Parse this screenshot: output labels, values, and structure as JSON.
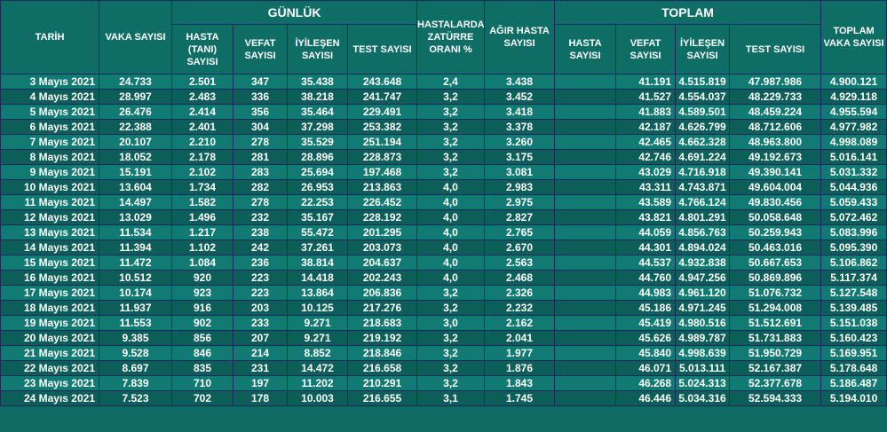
{
  "header": {
    "tarih": "TARİH",
    "vaka": "VAKA SAYISI",
    "gunluk": "GÜNLÜK",
    "hasta_tani": "HASTA (TANI) SAYISI",
    "vefat": "VEFAT SAYISI",
    "iyilesen": "İYİLEŞEN SAYISI",
    "test": "TEST SAYISI",
    "zaturre": "HASTALARDA ZATÜRRE ORANI %",
    "agir": "AĞIR HASTA SAYISI",
    "toplam": "TOPLAM",
    "t_hasta": "HASTA SAYISI",
    "t_vefat": "VEFAT SAYISI",
    "t_iyilesen": "İYİLEŞEN SAYISI",
    "t_test": "TEST SAYISI",
    "t_vaka": "TOPLAM VAKA SAYISI"
  },
  "rows": [
    {
      "tarih": "3 Mayıs 2021",
      "vaka": "24.733",
      "hasta": "2.501",
      "vefat": "347",
      "iyilesen": "35.438",
      "test": "243.648",
      "zaturre": "2,4",
      "agir": "3.438",
      "t_hasta": "",
      "t_vefat": "41.191",
      "t_iyilesen": "4.515.819",
      "t_test": "47.987.986",
      "t_vaka": "4.900.121"
    },
    {
      "tarih": "4 Mayıs 2021",
      "vaka": "28.997",
      "hasta": "2.483",
      "vefat": "336",
      "iyilesen": "38.218",
      "test": "241.747",
      "zaturre": "3,2",
      "agir": "3.452",
      "t_hasta": "",
      "t_vefat": "41.527",
      "t_iyilesen": "4.554.037",
      "t_test": "48.229.733",
      "t_vaka": "4.929.118"
    },
    {
      "tarih": "5 Mayıs 2021",
      "vaka": "26.476",
      "hasta": "2.414",
      "vefat": "356",
      "iyilesen": "35.464",
      "test": "229.491",
      "zaturre": "3,2",
      "agir": "3.418",
      "t_hasta": "",
      "t_vefat": "41.883",
      "t_iyilesen": "4.589.501",
      "t_test": "48.459.224",
      "t_vaka": "4.955.594"
    },
    {
      "tarih": "6 Mayıs 2021",
      "vaka": "22.388",
      "hasta": "2.401",
      "vefat": "304",
      "iyilesen": "37.298",
      "test": "253.382",
      "zaturre": "3,2",
      "agir": "3.378",
      "t_hasta": "",
      "t_vefat": "42.187",
      "t_iyilesen": "4.626.799",
      "t_test": "48.712.606",
      "t_vaka": "4.977.982"
    },
    {
      "tarih": "7 Mayıs 2021",
      "vaka": "20.107",
      "hasta": "2.210",
      "vefat": "278",
      "iyilesen": "35.529",
      "test": "251.194",
      "zaturre": "3,2",
      "agir": "3.260",
      "t_hasta": "",
      "t_vefat": "42.465",
      "t_iyilesen": "4.662.328",
      "t_test": "48.963.800",
      "t_vaka": "4.998.089"
    },
    {
      "tarih": "8 Mayıs 2021",
      "vaka": "18.052",
      "hasta": "2.178",
      "vefat": "281",
      "iyilesen": "28.896",
      "test": "228.873",
      "zaturre": "3,2",
      "agir": "3.175",
      "t_hasta": "",
      "t_vefat": "42.746",
      "t_iyilesen": "4.691.224",
      "t_test": "49.192.673",
      "t_vaka": "5.016.141"
    },
    {
      "tarih": "9 Mayıs 2021",
      "vaka": "15.191",
      "hasta": "2.102",
      "vefat": "283",
      "iyilesen": "25.694",
      "test": "197.468",
      "zaturre": "3,2",
      "agir": "3.081",
      "t_hasta": "",
      "t_vefat": "43.029",
      "t_iyilesen": "4.716.918",
      "t_test": "49.390.141",
      "t_vaka": "5.031.332"
    },
    {
      "tarih": "10 Mayıs 2021",
      "vaka": "13.604",
      "hasta": "1.734",
      "vefat": "282",
      "iyilesen": "26.953",
      "test": "213.863",
      "zaturre": "4,0",
      "agir": "2.983",
      "t_hasta": "",
      "t_vefat": "43.311",
      "t_iyilesen": "4.743.871",
      "t_test": "49.604.004",
      "t_vaka": "5.044.936"
    },
    {
      "tarih": "11 Mayıs 2021",
      "vaka": "14.497",
      "hasta": "1.582",
      "vefat": "278",
      "iyilesen": "22.253",
      "test": "226.452",
      "zaturre": "4,0",
      "agir": "2.975",
      "t_hasta": "",
      "t_vefat": "43.589",
      "t_iyilesen": "4.766.124",
      "t_test": "49.830.456",
      "t_vaka": "5.059.433"
    },
    {
      "tarih": "12 Mayıs 2021",
      "vaka": "13.029",
      "hasta": "1.496",
      "vefat": "232",
      "iyilesen": "35.167",
      "test": "228.192",
      "zaturre": "4,0",
      "agir": "2.827",
      "t_hasta": "",
      "t_vefat": "43.821",
      "t_iyilesen": "4.801.291",
      "t_test": "50.058.648",
      "t_vaka": "5.072.462"
    },
    {
      "tarih": "13 Mayıs 2021",
      "vaka": "11.534",
      "hasta": "1.217",
      "vefat": "238",
      "iyilesen": "55.472",
      "test": "201.295",
      "zaturre": "4,0",
      "agir": "2.765",
      "t_hasta": "",
      "t_vefat": "44.059",
      "t_iyilesen": "4.856.763",
      "t_test": "50.259.943",
      "t_vaka": "5.083.996"
    },
    {
      "tarih": "14 Mayıs 2021",
      "vaka": "11.394",
      "hasta": "1.102",
      "vefat": "242",
      "iyilesen": "37.261",
      "test": "203.073",
      "zaturre": "4,0",
      "agir": "2.670",
      "t_hasta": "",
      "t_vefat": "44.301",
      "t_iyilesen": "4.894.024",
      "t_test": "50.463.016",
      "t_vaka": "5.095.390"
    },
    {
      "tarih": "15 Mayıs 2021",
      "vaka": "11.472",
      "hasta": "1.084",
      "vefat": "236",
      "iyilesen": "38.814",
      "test": "204.637",
      "zaturre": "4,0",
      "agir": "2.563",
      "t_hasta": "",
      "t_vefat": "44.537",
      "t_iyilesen": "4.932.838",
      "t_test": "50.667.653",
      "t_vaka": "5.106.862"
    },
    {
      "tarih": "16 Mayıs 2021",
      "vaka": "10.512",
      "hasta": "920",
      "vefat": "223",
      "iyilesen": "14.418",
      "test": "202.243",
      "zaturre": "4,0",
      "agir": "2.468",
      "t_hasta": "",
      "t_vefat": "44.760",
      "t_iyilesen": "4.947.256",
      "t_test": "50.869.896",
      "t_vaka": "5.117.374"
    },
    {
      "tarih": "17 Mayıs 2021",
      "vaka": "10.174",
      "hasta": "923",
      "vefat": "223",
      "iyilesen": "13.864",
      "test": "206.836",
      "zaturre": "3,2",
      "agir": "2.326",
      "t_hasta": "",
      "t_vefat": "44.983",
      "t_iyilesen": "4.961.120",
      "t_test": "51.076.732",
      "t_vaka": "5.127.548"
    },
    {
      "tarih": "18 Mayıs 2021",
      "vaka": "11.937",
      "hasta": "916",
      "vefat": "203",
      "iyilesen": "10.125",
      "test": "217.276",
      "zaturre": "3,2",
      "agir": "2.232",
      "t_hasta": "",
      "t_vefat": "45.186",
      "t_iyilesen": "4.971.245",
      "t_test": "51.294.008",
      "t_vaka": "5.139.485"
    },
    {
      "tarih": "19 Mayıs 2021",
      "vaka": "11.553",
      "hasta": "902",
      "vefat": "233",
      "iyilesen": "9.271",
      "test": "218.683",
      "zaturre": "3,0",
      "agir": "2.162",
      "t_hasta": "",
      "t_vefat": "45.419",
      "t_iyilesen": "4.980.516",
      "t_test": "51.512.691",
      "t_vaka": "5.151.038"
    },
    {
      "tarih": "20 Mayıs 2021",
      "vaka": "9.385",
      "hasta": "856",
      "vefat": "207",
      "iyilesen": "9.271",
      "test": "219.192",
      "zaturre": "3,2",
      "agir": "2.041",
      "t_hasta": "",
      "t_vefat": "45.626",
      "t_iyilesen": "4.989.787",
      "t_test": "51.731.883",
      "t_vaka": "5.160.423"
    },
    {
      "tarih": "21 Mayıs 2021",
      "vaka": "9.528",
      "hasta": "846",
      "vefat": "214",
      "iyilesen": "8.852",
      "test": "218.846",
      "zaturre": "3,2",
      "agir": "1.977",
      "t_hasta": "",
      "t_vefat": "45.840",
      "t_iyilesen": "4.998.639",
      "t_test": "51.950.729",
      "t_vaka": "5.169.951"
    },
    {
      "tarih": "22 Mayıs 2021",
      "vaka": "8.697",
      "hasta": "835",
      "vefat": "231",
      "iyilesen": "14.472",
      "test": "216.658",
      "zaturre": "3,2",
      "agir": "1.876",
      "t_hasta": "",
      "t_vefat": "46.071",
      "t_iyilesen": "5.013.111",
      "t_test": "52.167.387",
      "t_vaka": "5.178.648"
    },
    {
      "tarih": "23 Mayıs 2021",
      "vaka": "7.839",
      "hasta": "710",
      "vefat": "197",
      "iyilesen": "11.202",
      "test": "210.291",
      "zaturre": "3,2",
      "agir": "1.843",
      "t_hasta": "",
      "t_vefat": "46.268",
      "t_iyilesen": "5.024.313",
      "t_test": "52.377.678",
      "t_vaka": "5.186.487"
    },
    {
      "tarih": "24 Mayıs 2021",
      "vaka": "7.523",
      "hasta": "702",
      "vefat": "178",
      "iyilesen": "10.003",
      "test": "216.655",
      "zaturre": "3,1",
      "agir": "1.745",
      "t_hasta": "",
      "t_vefat": "46.446",
      "t_iyilesen": "5.034.316",
      "t_test": "52.594.333",
      "t_vaka": "5.194.010"
    }
  ]
}
